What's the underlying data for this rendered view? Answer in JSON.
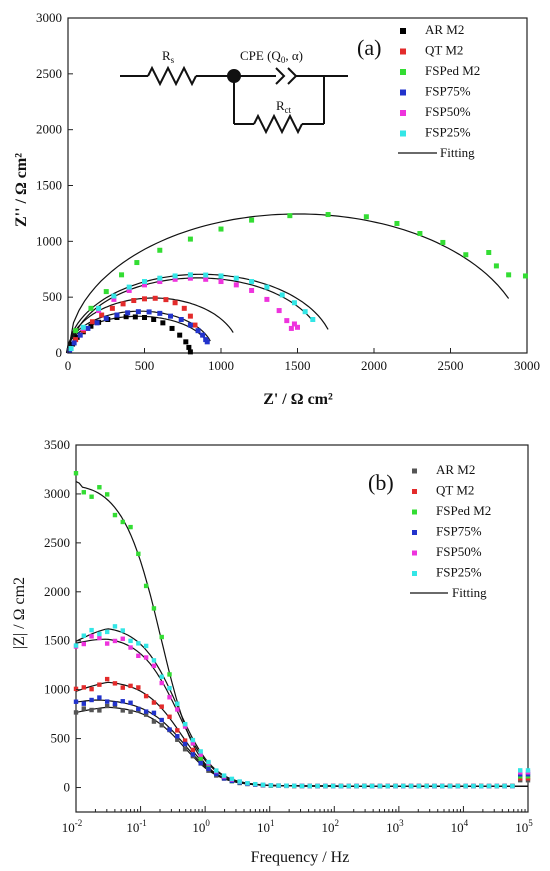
{
  "chart_data": [
    {
      "type": "scatter",
      "panel_label": "(a)",
      "xlabel": "Z' / Ω cm²",
      "ylabel": "Z'' / Ω cm²",
      "xlim": [
        0,
        3000
      ],
      "ylim": [
        0,
        3000
      ],
      "xticks": [
        "0",
        "500",
        "1000",
        "1500",
        "2000",
        "2500",
        "3000"
      ],
      "yticks": [
        "0",
        "500",
        "1000",
        "1500",
        "2000",
        "2500",
        "3000"
      ],
      "legend_position": "top-right",
      "circuit": {
        "rs": "R",
        "rs_sub": "s",
        "cpe": "CPE (Q",
        "cpe_sub": "0",
        "cpe_tail": ", α)",
        "rct": "R",
        "rct_sub": "ct"
      },
      "series": [
        {
          "name": "AR M2",
          "color": "#000000",
          "x": [
            10,
            30,
            60,
            100,
            150,
            200,
            260,
            320,
            380,
            440,
            500,
            560,
            620,
            680,
            730,
            770,
            790,
            800
          ],
          "y": [
            20,
            80,
            140,
            190,
            240,
            275,
            300,
            318,
            325,
            323,
            318,
            300,
            270,
            220,
            160,
            100,
            50,
            10
          ]
        },
        {
          "name": "QT M2",
          "color": "#e32b2b",
          "x": [
            10,
            50,
            100,
            160,
            220,
            290,
            360,
            430,
            500,
            570,
            640,
            700,
            760,
            800,
            830
          ],
          "y": [
            20,
            120,
            200,
            280,
            340,
            400,
            440,
            470,
            485,
            490,
            478,
            450,
            400,
            330,
            250
          ]
        },
        {
          "name": "FSPed M2",
          "color": "#33dd33",
          "x": [
            50,
            150,
            250,
            350,
            450,
            600,
            800,
            1000,
            1200,
            1450,
            1700,
            1950,
            2150,
            2300,
            2450,
            2600,
            2750,
            2800,
            2880,
            2990
          ],
          "y": [
            200,
            400,
            550,
            700,
            810,
            920,
            1020,
            1110,
            1190,
            1230,
            1240,
            1220,
            1160,
            1070,
            990,
            880,
            900,
            780,
            700,
            690
          ]
        },
        {
          "name": "FSP75%",
          "color": "#2233cc",
          "x": [
            10,
            40,
            80,
            130,
            190,
            250,
            320,
            390,
            460,
            530,
            600,
            670,
            740,
            800,
            850,
            880,
            900,
            910
          ],
          "y": [
            20,
            90,
            160,
            220,
            270,
            310,
            340,
            360,
            370,
            368,
            355,
            330,
            300,
            250,
            200,
            160,
            120,
            100
          ]
        },
        {
          "name": "FSP50%",
          "color": "#ee33dd",
          "x": [
            20,
            100,
            200,
            300,
            400,
            500,
            600,
            700,
            800,
            900,
            1000,
            1100,
            1200,
            1300,
            1380,
            1430,
            1460,
            1480,
            1500
          ],
          "y": [
            40,
            220,
            380,
            480,
            560,
            610,
            640,
            660,
            670,
            660,
            640,
            610,
            560,
            480,
            380,
            290,
            220,
            260,
            230
          ]
        },
        {
          "name": "FSP25%",
          "color": "#33e6e6",
          "x": [
            20,
            100,
            200,
            300,
            400,
            500,
            600,
            700,
            800,
            900,
            1000,
            1100,
            1200,
            1300,
            1400,
            1480,
            1550,
            1600
          ],
          "y": [
            40,
            230,
            400,
            510,
            590,
            640,
            670,
            690,
            700,
            698,
            690,
            670,
            640,
            590,
            520,
            450,
            370,
            300
          ]
        }
      ],
      "fits": [
        {
          "name": "Fitting",
          "center": 460,
          "radius": 470,
          "squash": 0.7,
          "x_end": 900
        },
        {
          "name": "Fitting",
          "center": 560,
          "radius": 560,
          "squash": 0.88,
          "x_end": 1080
        },
        {
          "name": "Fitting",
          "center": 1500,
          "radius": 1500,
          "squash": 0.83,
          "x_end": 2880
        },
        {
          "name": "Fitting",
          "center": 470,
          "radius": 480,
          "squash": 0.78,
          "x_end": 930
        },
        {
          "name": "Fitting",
          "center": 850,
          "radius": 830,
          "squash": 0.81,
          "x_end": 1600
        },
        {
          "name": "Fitting",
          "center": 870,
          "radius": 870,
          "squash": 0.81,
          "x_end": 1700
        }
      ],
      "fit_label": "Fitting"
    },
    {
      "type": "scatter",
      "panel_label": "(b)",
      "xlabel": "Frequency / Hz",
      "ylabel": "|Z| / Ω cm2",
      "x_scale": "log",
      "xlim": [
        0.01,
        100000
      ],
      "ylim": [
        -250,
        3500
      ],
      "xticks": [
        {
          "base": "10",
          "exp": "-2"
        },
        {
          "base": "10",
          "exp": "-1"
        },
        {
          "base": "10",
          "exp": "0"
        },
        {
          "base": "10",
          "exp": "1"
        },
        {
          "base": "10",
          "exp": "2"
        },
        {
          "base": "10",
          "exp": "3"
        },
        {
          "base": "10",
          "exp": "4"
        },
        {
          "base": "10",
          "exp": "5"
        }
      ],
      "yticks": [
        "0",
        "500",
        "1000",
        "1500",
        "2000",
        "2500",
        "3000",
        "3500"
      ],
      "legend_position": "top-right",
      "series": [
        {
          "name": "AR M2",
          "color": "#555555",
          "base": 830,
          "peak_f": 0.03,
          "f_half": 0.5,
          "start": 780
        },
        {
          "name": "QT M2",
          "color": "#e32b2b",
          "base": 1090,
          "peak_f": 0.03,
          "f_half": 0.45,
          "start": 1000
        },
        {
          "name": "FSPed M2",
          "color": "#33dd33",
          "base": 3100,
          "peak_f": 0.012,
          "f_half": 0.22,
          "start": 3150
        },
        {
          "name": "FSP75%",
          "color": "#2233cc",
          "base": 900,
          "peak_f": 0.02,
          "f_half": 0.5,
          "start": 880
        },
        {
          "name": "FSP50%",
          "color": "#ee33dd",
          "base": 1540,
          "peak_f": 0.03,
          "f_half": 0.4,
          "start": 1500
        },
        {
          "name": "FSP25%",
          "color": "#33e6e6",
          "base": 1650,
          "peak_f": 0.03,
          "f_half": 0.4,
          "start": 1520
        }
      ],
      "fit_label": "Fitting"
    }
  ]
}
